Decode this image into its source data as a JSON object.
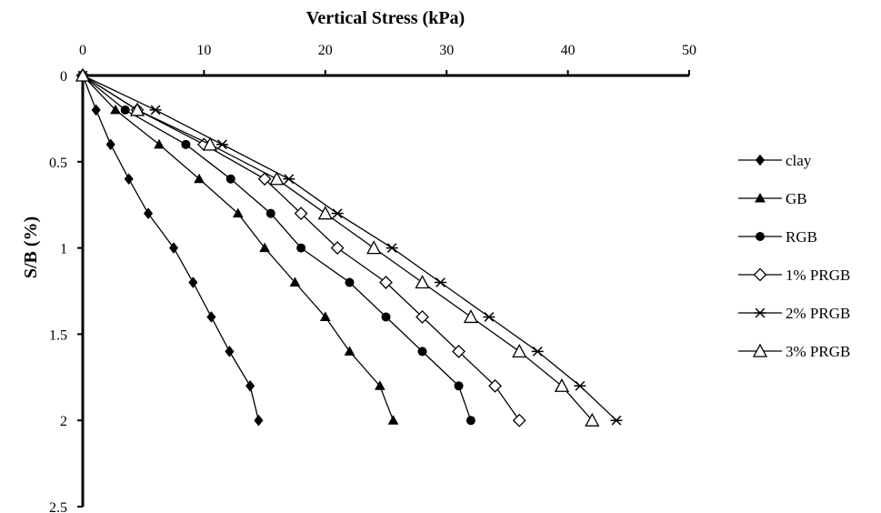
{
  "chart_data": {
    "type": "line",
    "xlabel": "Vertical Stress (kPa)",
    "ylabel": "S/B (%)",
    "xlim": [
      0,
      50
    ],
    "ylim": [
      0,
      2.5
    ],
    "x_axis_position": "top",
    "y_axis_inverted": true,
    "x_ticks": [
      "0",
      "10",
      "20",
      "30",
      "40",
      "50"
    ],
    "y_ticks": [
      "0",
      "0.5",
      "1",
      "1.5",
      "2",
      "2.5"
    ],
    "grid": false,
    "legend_position": "right",
    "series": [
      {
        "name": "clay",
        "marker": "diamond-filled",
        "points": [
          [
            0,
            0
          ],
          [
            1.1,
            0.2
          ],
          [
            2.3,
            0.4
          ],
          [
            3.8,
            0.6
          ],
          [
            5.4,
            0.8
          ],
          [
            7.5,
            1.0
          ],
          [
            9.1,
            1.2
          ],
          [
            10.6,
            1.4
          ],
          [
            12.1,
            1.6
          ],
          [
            13.8,
            1.8
          ],
          [
            14.5,
            2.0
          ]
        ]
      },
      {
        "name": "GB",
        "marker": "triangle-filled",
        "points": [
          [
            0,
            0
          ],
          [
            2.7,
            0.2
          ],
          [
            6.3,
            0.4
          ],
          [
            9.6,
            0.6
          ],
          [
            12.8,
            0.8
          ],
          [
            15,
            1.0
          ],
          [
            17.5,
            1.2
          ],
          [
            20,
            1.4
          ],
          [
            22,
            1.6
          ],
          [
            24.5,
            1.8
          ],
          [
            25.6,
            2.0
          ]
        ]
      },
      {
        "name": "RGB",
        "marker": "circle-filled",
        "points": [
          [
            0,
            0
          ],
          [
            3.5,
            0.2
          ],
          [
            8.5,
            0.4
          ],
          [
            12.2,
            0.6
          ],
          [
            15.5,
            0.8
          ],
          [
            18,
            1.0
          ],
          [
            22,
            1.2
          ],
          [
            25,
            1.4
          ],
          [
            28,
            1.6
          ],
          [
            31,
            1.8
          ],
          [
            32,
            2.0
          ]
        ]
      },
      {
        "name": "1% PRGB",
        "marker": "diamond-open",
        "points": [
          [
            0,
            0
          ],
          [
            4.5,
            0.2
          ],
          [
            10,
            0.4
          ],
          [
            15,
            0.6
          ],
          [
            18,
            0.8
          ],
          [
            21,
            1.0
          ],
          [
            25,
            1.2
          ],
          [
            28,
            1.4
          ],
          [
            31,
            1.6
          ],
          [
            34,
            1.8
          ],
          [
            36,
            2.0
          ]
        ]
      },
      {
        "name": "2% PRGB",
        "marker": "asterisk",
        "points": [
          [
            0,
            0
          ],
          [
            6,
            0.2
          ],
          [
            11.5,
            0.4
          ],
          [
            17,
            0.6
          ],
          [
            21,
            0.8
          ],
          [
            25.5,
            1.0
          ],
          [
            29.5,
            1.2
          ],
          [
            33.5,
            1.4
          ],
          [
            37.5,
            1.6
          ],
          [
            41,
            1.8
          ],
          [
            44,
            2.0
          ]
        ]
      },
      {
        "name": "3% PRGB",
        "marker": "triangle-open",
        "points": [
          [
            0,
            0
          ],
          [
            4.5,
            0.2
          ],
          [
            10.5,
            0.4
          ],
          [
            16,
            0.6
          ],
          [
            20,
            0.8
          ],
          [
            24,
            1.0
          ],
          [
            28,
            1.2
          ],
          [
            32,
            1.4
          ],
          [
            36,
            1.6
          ],
          [
            39.5,
            1.8
          ],
          [
            42,
            2.0
          ]
        ]
      }
    ]
  }
}
